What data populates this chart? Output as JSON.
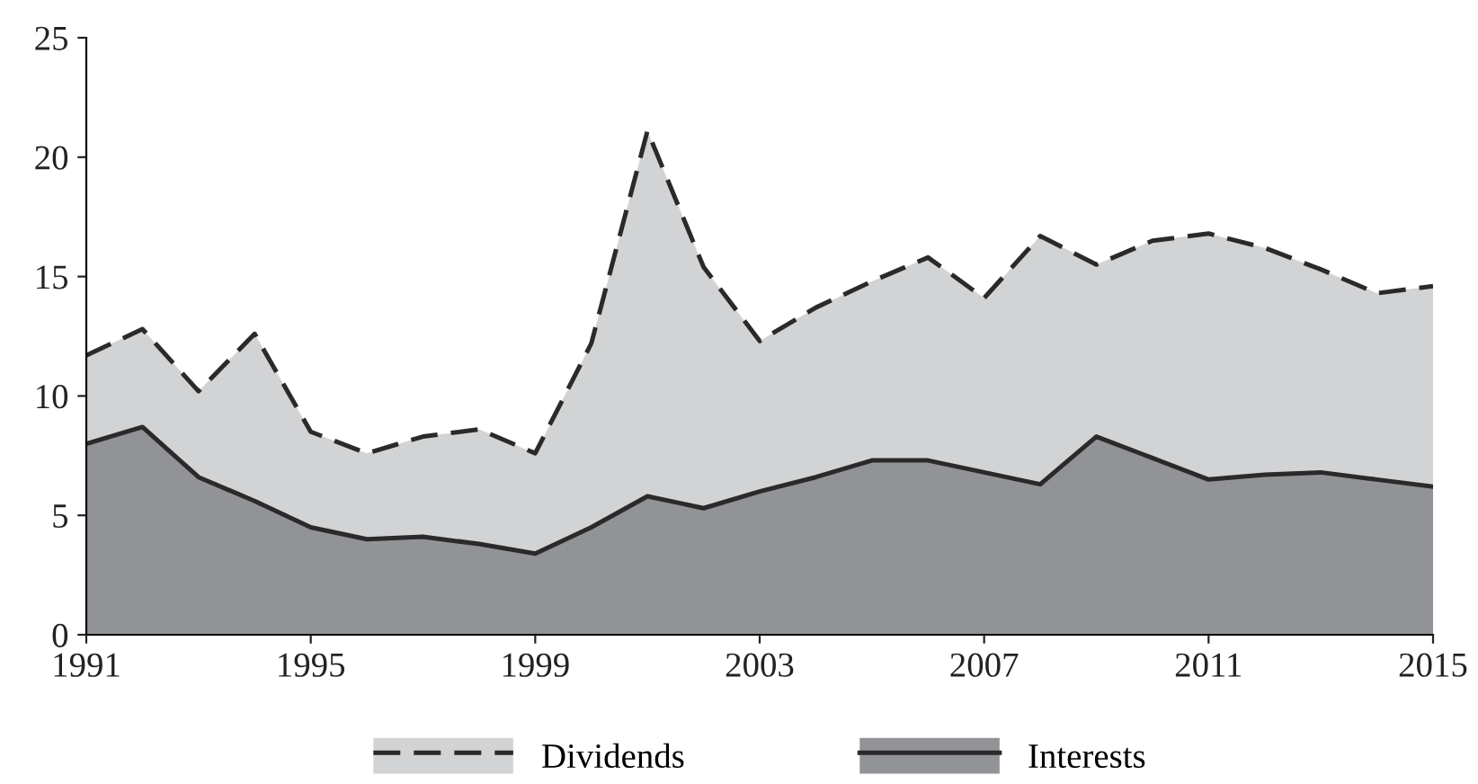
{
  "chart_data": {
    "type": "area",
    "x": [
      1991,
      1992,
      1993,
      1994,
      1995,
      1996,
      1997,
      1998,
      1999,
      2000,
      2001,
      2002,
      2003,
      2004,
      2005,
      2006,
      2007,
      2008,
      2009,
      2010,
      2011,
      2012,
      2013,
      2014,
      2015
    ],
    "series": [
      {
        "name": "Dividends",
        "color": "#d2d3d5",
        "line_style": "dashed",
        "values": [
          11.7,
          12.8,
          10.2,
          12.6,
          8.5,
          7.6,
          8.3,
          8.6,
          7.6,
          12.2,
          21.1,
          15.4,
          12.3,
          13.7,
          14.8,
          15.8,
          14.1,
          16.7,
          15.5,
          16.5,
          16.8,
          16.2,
          15.3,
          14.3,
          14.6
        ]
      },
      {
        "name": "Interests",
        "color": "#929397",
        "line_style": "solid",
        "values": [
          8.0,
          8.7,
          6.6,
          5.6,
          4.5,
          4.0,
          4.1,
          3.8,
          3.4,
          4.5,
          5.8,
          5.3,
          6.0,
          6.6,
          7.3,
          7.3,
          6.8,
          6.3,
          8.3,
          7.4,
          6.5,
          6.7,
          6.8,
          6.5,
          6.2
        ]
      }
    ],
    "xlim": [
      1991,
      2015
    ],
    "xticks": [
      1991,
      1995,
      1999,
      2003,
      2007,
      2011,
      2015
    ],
    "ylim": [
      0,
      25
    ],
    "yticks": [
      0,
      5,
      10,
      15,
      20,
      25
    ],
    "grid": false,
    "legend": "bottom"
  }
}
